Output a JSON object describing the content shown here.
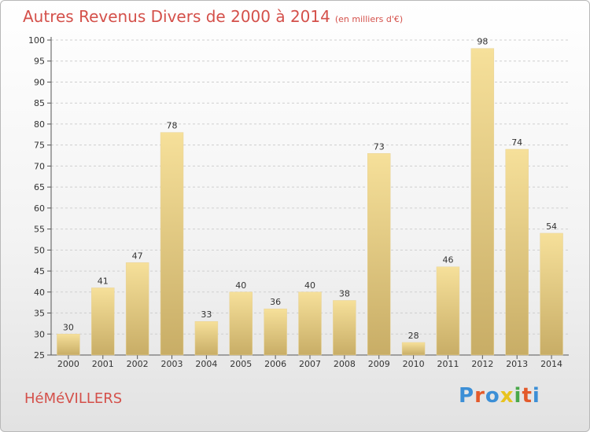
{
  "title": "Autres Revenus Divers de 2000 à 2014",
  "subtitle": "(en milliers d'€)",
  "town": "HéMéVILLERS",
  "brand": "Proxiti",
  "brand_colors": [
    "#3c8fd6",
    "#e35a2b",
    "#3c8fd6",
    "#e8c31f",
    "#4aa84a",
    "#e35a2b",
    "#3c8fd6"
  ],
  "colors": {
    "title": "#d4504a",
    "bar_top": "#f6e09a",
    "bar_bottom": "#c8ad66"
  },
  "chart_data": {
    "type": "bar",
    "categories": [
      "2000",
      "2001",
      "2002",
      "2003",
      "2004",
      "2005",
      "2006",
      "2007",
      "2008",
      "2009",
      "2010",
      "2011",
      "2012",
      "2013",
      "2014"
    ],
    "values": [
      30,
      41,
      47,
      78,
      33,
      40,
      36,
      40,
      38,
      73,
      28,
      46,
      98,
      74,
      54
    ],
    "title": "Autres Revenus Divers de 2000 à 2014",
    "ylim": [
      25,
      100
    ],
    "yticks": [
      25,
      30,
      35,
      40,
      45,
      50,
      55,
      60,
      65,
      70,
      75,
      80,
      85,
      90,
      95,
      100
    ],
    "grid": true
  }
}
